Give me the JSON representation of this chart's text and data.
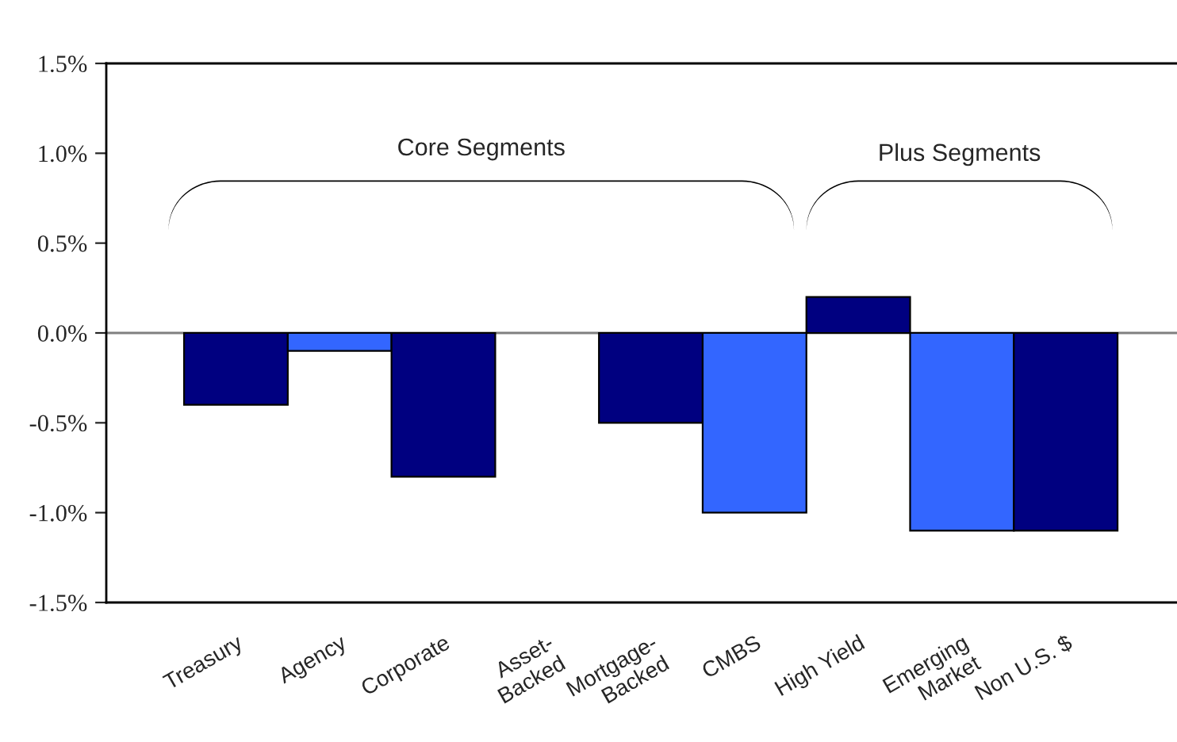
{
  "chart_data": {
    "type": "bar",
    "categories": [
      "Treasury",
      "Agency",
      "Corporate",
      "Asset-\nBacked",
      "Mortgage-\nBacked",
      "CMBS",
      "High Yield",
      "Emerging\nMarket",
      "Non U.S. $"
    ],
    "values": [
      -0.4,
      -0.1,
      -0.8,
      0,
      -0.5,
      -1.0,
      0.2,
      -1.1,
      -1.1
    ],
    "colors": [
      "#000080",
      "#3366ff",
      "#000080",
      "#3366ff",
      "#000080",
      "#3366ff",
      "#000080",
      "#3366ff",
      "#000080"
    ],
    "ylim": [
      -1.5,
      1.5
    ],
    "yticks": [
      {
        "value": -1.5,
        "label": "-1.5%"
      },
      {
        "value": -1.0,
        "label": "-1.0%"
      },
      {
        "value": -0.5,
        "label": "-0.5%"
      },
      {
        "value": 0.0,
        "label": "0.0%"
      },
      {
        "value": 0.5,
        "label": "0.5%"
      },
      {
        "value": 1.0,
        "label": "1.0%"
      },
      {
        "value": 1.5,
        "label": "1.5%"
      }
    ],
    "annotations": [
      "Core Segments",
      "Plus Segments"
    ],
    "ref_lines": [
      {
        "axis": "y",
        "value": 0,
        "color": "#808080"
      }
    ],
    "grid": false,
    "legend": false
  }
}
